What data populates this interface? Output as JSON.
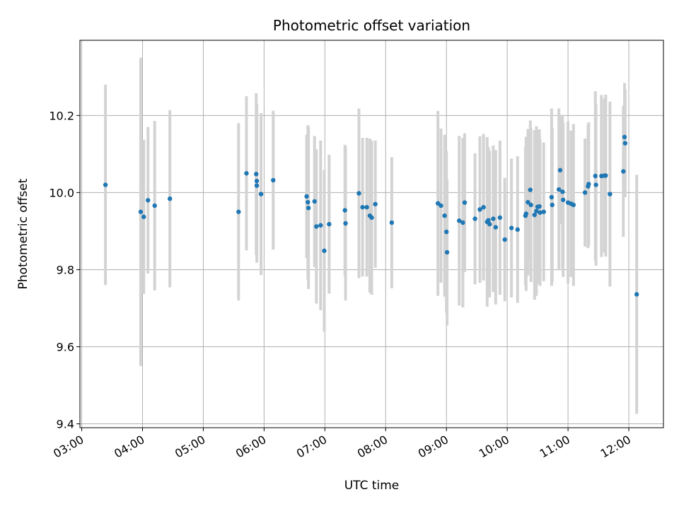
{
  "chart_data": {
    "type": "scatter",
    "title": "Photometric offset variation",
    "xlabel": "UTC time",
    "ylabel": "Photometric offset",
    "xlim": [
      2.97,
      12.57
    ],
    "ylim": [
      9.39,
      10.395
    ],
    "grid": true,
    "legend": "none",
    "x_ticks": [
      3,
      4,
      5,
      6,
      7,
      8,
      9,
      10,
      11,
      12
    ],
    "x_tick_labels": [
      "03:00",
      "04:00",
      "05:00",
      "06:00",
      "07:00",
      "08:00",
      "09:00",
      "10:00",
      "11:00",
      "12:00"
    ],
    "y_ticks": [
      9.4,
      9.6,
      9.8,
      10.0,
      10.2
    ],
    "y_tick_labels": [
      "9.4",
      "9.6",
      "9.8",
      "10.0",
      "10.2"
    ],
    "point_color": "#1f77b4",
    "errorbar_color": "#d3d3d3",
    "series": [
      {
        "name": "Photometric offset",
        "x": [
          3.39,
          3.97,
          4.02,
          4.09,
          4.2,
          4.45,
          5.58,
          5.71,
          5.87,
          5.88,
          5.88,
          5.95,
          6.15,
          6.7,
          6.72,
          6.73,
          6.83,
          6.86,
          6.93,
          6.99,
          7.07,
          7.33,
          7.34,
          7.56,
          7.62,
          7.69,
          7.74,
          7.77,
          7.83,
          8.1,
          8.86,
          8.91,
          8.97,
          9.0,
          9.01,
          9.21,
          9.27,
          9.3,
          9.47,
          9.55,
          9.61,
          9.67,
          9.69,
          9.71,
          9.77,
          9.81,
          9.88,
          9.96,
          10.07,
          10.17,
          10.3,
          10.31,
          10.34,
          10.38,
          10.39,
          10.45,
          10.48,
          10.5,
          10.53,
          10.54,
          10.6,
          10.73,
          10.74,
          10.85,
          10.87,
          10.91,
          10.92,
          11.0,
          11.05,
          11.09,
          11.28,
          11.33,
          11.34,
          11.45,
          11.46,
          11.55,
          11.6,
          11.62,
          11.69,
          11.91,
          11.93,
          11.94,
          12.13
        ],
        "y": [
          10.02,
          9.95,
          9.937,
          9.98,
          9.966,
          9.984,
          9.95,
          10.05,
          10.048,
          10.03,
          10.018,
          9.996,
          10.032,
          9.99,
          9.975,
          9.96,
          9.977,
          9.912,
          9.915,
          9.849,
          9.918,
          9.954,
          9.92,
          9.998,
          9.962,
          9.962,
          9.94,
          9.935,
          9.97,
          9.922,
          9.972,
          9.966,
          9.94,
          9.898,
          9.845,
          9.927,
          9.922,
          9.974,
          9.932,
          9.956,
          9.962,
          9.924,
          9.928,
          9.918,
          9.932,
          9.91,
          9.935,
          9.878,
          9.908,
          9.904,
          9.94,
          9.945,
          9.975,
          10.007,
          9.968,
          9.942,
          9.952,
          9.963,
          9.964,
          9.948,
          9.95,
          9.988,
          9.968,
          10.008,
          10.058,
          10.002,
          9.981,
          9.974,
          9.971,
          9.968,
          10.0,
          10.016,
          10.022,
          10.043,
          10.02,
          10.043,
          10.044,
          10.044,
          9.996,
          10.055,
          10.144,
          10.128,
          9.736
        ],
        "err": [
          0.26,
          0.4,
          0.2,
          0.19,
          0.22,
          0.23,
          0.23,
          0.2,
          0.21,
          0.2,
          0.2,
          0.21,
          0.18,
          0.16,
          0.2,
          0.21,
          0.17,
          0.2,
          0.22,
          0.21,
          0.18,
          0.17,
          0.2,
          0.22,
          0.18,
          0.18,
          0.2,
          0.2,
          0.165,
          0.17,
          0.24,
          0.2,
          0.21,
          0.21,
          0.19,
          0.22,
          0.22,
          0.18,
          0.17,
          0.19,
          0.19,
          0.22,
          0.19,
          0.19,
          0.19,
          0.2,
          0.2,
          0.16,
          0.18,
          0.19,
          0.18,
          0.2,
          0.19,
          0.18,
          0.2,
          0.22,
          0.22,
          0.2,
          0.2,
          0.19,
          0.18,
          0.23,
          0.2,
          0.21,
          0.14,
          0.2,
          0.2,
          0.21,
          0.19,
          0.21,
          0.14,
          0.16,
          0.16,
          0.22,
          0.21,
          0.21,
          0.2,
          0.21,
          0.24,
          0.17,
          0.14,
          0.14,
          0.31
        ]
      }
    ]
  }
}
